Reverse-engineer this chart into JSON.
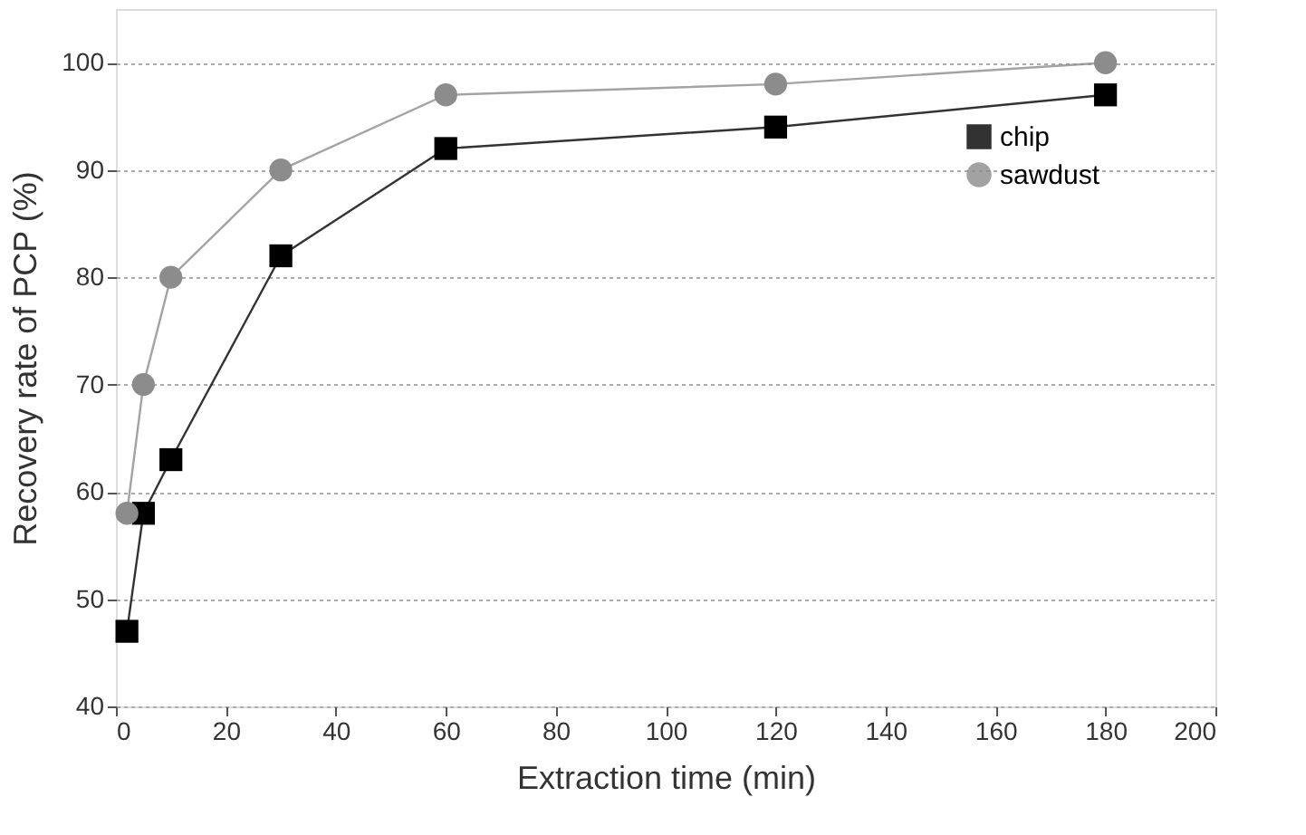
{
  "chart_data": {
    "type": "line",
    "xlabel": "Extraction time (min)",
    "ylabel": "Recovery rate of PCP (%)",
    "xlim": [
      0,
      200
    ],
    "xticks": [
      0,
      20,
      40,
      60,
      80,
      100,
      120,
      140,
      160,
      180,
      200
    ],
    "ylim": [
      40,
      105
    ],
    "yticks": [
      40,
      50,
      60,
      70,
      80,
      90,
      100
    ],
    "grid": "y",
    "legend": "top right",
    "line_style": "solid",
    "series": [
      {
        "name": "chip",
        "color": "#000000",
        "marker": "square",
        "x": [
          2,
          5,
          10,
          30,
          60,
          120,
          180
        ],
        "values": [
          47,
          58,
          63,
          82,
          92,
          94,
          97
        ]
      },
      {
        "name": "sawdust",
        "color": "#8c8c8c",
        "marker": "circle",
        "x": [
          2,
          5,
          10,
          30,
          60,
          120,
          180
        ],
        "values": [
          58,
          70,
          80,
          90,
          97,
          98,
          100
        ]
      }
    ]
  }
}
